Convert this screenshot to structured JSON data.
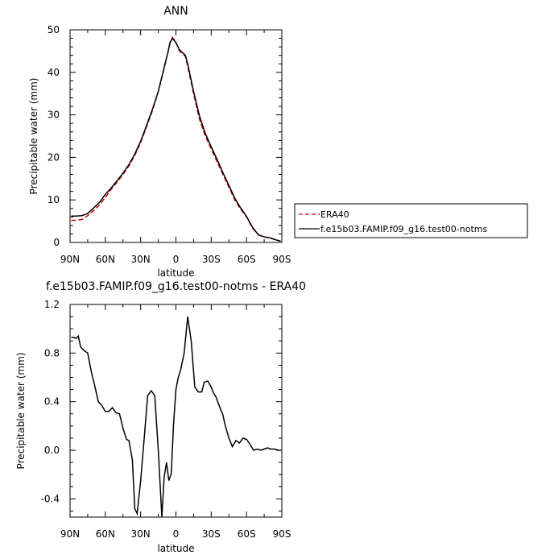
{
  "chart_data": [
    {
      "type": "line",
      "title": "ANN",
      "xlabel": "latitude",
      "ylabel": "Precipitable water (mm)",
      "x_ticks": [
        "90N",
        "60N",
        "30N",
        "0",
        "30S",
        "60S",
        "90S"
      ],
      "y_ticks": [
        "0",
        "10",
        "20",
        "30",
        "40",
        "50"
      ],
      "xlim": [
        90,
        -90
      ],
      "ylim": [
        0,
        50
      ],
      "grid": false,
      "legend_position": "right",
      "x": [
        89,
        85,
        80,
        75,
        70,
        65,
        60,
        55,
        50,
        45,
        40,
        35,
        30,
        25,
        20,
        15,
        10,
        7,
        5,
        3,
        0,
        -3,
        -5,
        -8,
        -10,
        -15,
        -20,
        -25,
        -30,
        -35,
        -40,
        -45,
        -50,
        -55,
        -60,
        -65,
        -70,
        -75,
        -80,
        -85,
        -89
      ],
      "series": [
        {
          "name": "ERA40",
          "color": "#cc0000",
          "dash": "dashed",
          "values": [
            5.2,
            5.2,
            5.4,
            6.3,
            7.5,
            8.8,
            10.6,
            12.5,
            14.2,
            16.0,
            18.0,
            20.5,
            23.5,
            27.2,
            31.0,
            35.5,
            41.0,
            44.5,
            47.0,
            48.2,
            47.0,
            45.0,
            44.5,
            43.8,
            41.5,
            35.0,
            29.0,
            25.0,
            22.0,
            19.0,
            16.0,
            13.0,
            10.0,
            7.8,
            6.0,
            3.4,
            1.8,
            1.3,
            1.0,
            0.6,
            0.3
          ]
        },
        {
          "name": "f.e15b03.FAMIP.f09_g16.test00-notms",
          "color": "#000000",
          "dash": "solid",
          "values": [
            6.2,
            6.2,
            6.3,
            6.8,
            8.1,
            9.4,
            11.3,
            12.8,
            14.5,
            16.3,
            18.3,
            20.8,
            23.8,
            27.5,
            31.3,
            35.5,
            41.2,
            44.5,
            47.0,
            48.0,
            47.0,
            45.3,
            44.8,
            44.0,
            42.0,
            35.5,
            29.8,
            25.6,
            22.5,
            19.5,
            16.4,
            13.4,
            10.4,
            8.1,
            6.1,
            3.6,
            1.8,
            1.3,
            1.1,
            0.6,
            0.3
          ]
        }
      ]
    },
    {
      "type": "line",
      "title": "f.e15b03.FAMIP.f09_g16.test00-notms - ERA40",
      "xlabel": "latitude",
      "ylabel": "Precipitable water (mm)",
      "x_ticks": [
        "90N",
        "60N",
        "30N",
        "0",
        "30S",
        "60S",
        "90S"
      ],
      "y_ticks": [
        "-0.4",
        "0.0",
        "0.4",
        "0.8",
        "1.2"
      ],
      "xlim": [
        90,
        -90
      ],
      "ylim": [
        -0.55,
        1.2
      ],
      "grid": false,
      "x": [
        89,
        87,
        85,
        83,
        81,
        78,
        75,
        72,
        69,
        66,
        63,
        60,
        57,
        54,
        51,
        48,
        45,
        42,
        40,
        37,
        35,
        33,
        30,
        27,
        24,
        21,
        18,
        15,
        12,
        10,
        8,
        6,
        4,
        2,
        0,
        -2,
        -4,
        -7,
        -10,
        -13,
        -16,
        -19,
        -22,
        -24,
        -27,
        -30,
        -32,
        -34,
        -37,
        -40,
        -42,
        -45,
        -48,
        -51,
        -54,
        -57,
        -60,
        -63,
        -66,
        -69,
        -72,
        -75,
        -78,
        -80,
        -84,
        -87,
        -89
      ],
      "series": [
        {
          "name": "",
          "color": "#000000",
          "dash": "solid",
          "values": [
            0.93,
            0.93,
            0.92,
            0.94,
            0.85,
            0.82,
            0.8,
            0.65,
            0.53,
            0.4,
            0.37,
            0.32,
            0.32,
            0.35,
            0.31,
            0.3,
            0.18,
            0.09,
            0.08,
            -0.08,
            -0.48,
            -0.52,
            -0.25,
            0.1,
            0.45,
            0.49,
            0.45,
            0.0,
            -0.55,
            -0.22,
            -0.1,
            -0.25,
            -0.19,
            0.22,
            0.5,
            0.6,
            0.66,
            0.8,
            1.1,
            0.9,
            0.52,
            0.48,
            0.48,
            0.56,
            0.57,
            0.52,
            0.47,
            0.44,
            0.36,
            0.29,
            0.2,
            0.1,
            0.03,
            0.08,
            0.06,
            0.1,
            0.09,
            0.05,
            0.0,
            0.01,
            0.0,
            0.01,
            0.02,
            0.01,
            0.01,
            0.0,
            0.0
          ]
        }
      ]
    }
  ]
}
